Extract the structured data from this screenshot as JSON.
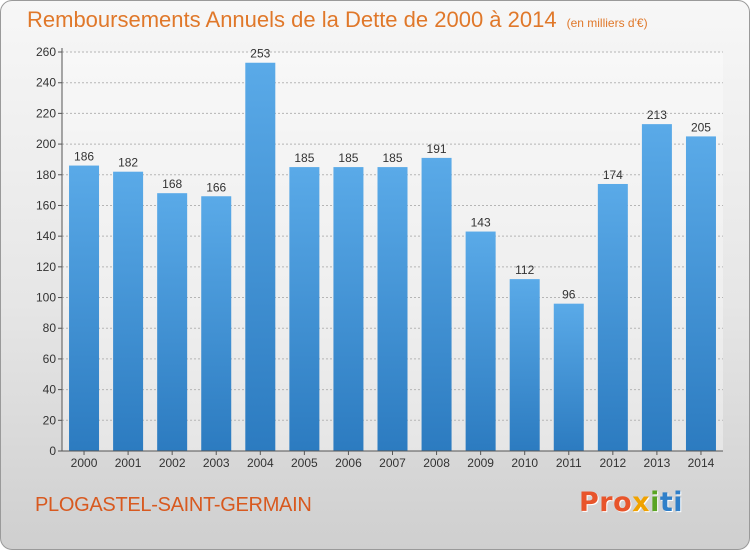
{
  "header": {
    "title": "Remboursements Annuels de la Dette de 2000 à 2014",
    "unit": "(en milliers d'€)"
  },
  "footer": {
    "city": "PLOGASTEL-SAINT-GERMAIN",
    "logo": "Proxiti"
  },
  "colors": {
    "bar_light": "#5aaae8",
    "bar_dark": "#2c7bc0",
    "title": "#e0782a",
    "city": "#d8591f"
  },
  "chart_data": {
    "type": "bar",
    "title": "Remboursements Annuels de la Dette de 2000 à 2014",
    "xlabel": "",
    "ylabel": "",
    "categories": [
      "2000",
      "2001",
      "2002",
      "2003",
      "2004",
      "2005",
      "2006",
      "2007",
      "2008",
      "2009",
      "2010",
      "2011",
      "2012",
      "2013",
      "2014"
    ],
    "values": [
      186,
      182,
      168,
      166,
      253,
      185,
      185,
      185,
      191,
      143,
      112,
      96,
      174,
      213,
      205
    ],
    "ylim": [
      0,
      260
    ],
    "yticks": [
      0,
      20,
      40,
      60,
      80,
      100,
      120,
      140,
      160,
      180,
      200,
      220,
      240,
      260
    ],
    "grid": true,
    "data_labels": true
  }
}
